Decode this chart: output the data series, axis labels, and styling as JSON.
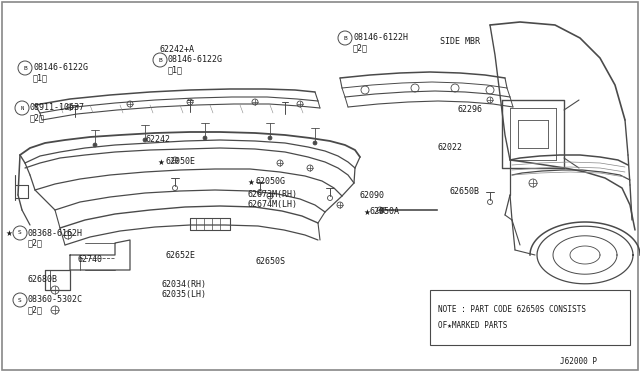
{
  "bg_color": "#ffffff",
  "line_color": "#4a4a4a",
  "text_color": "#1a1a1a",
  "fig_width": 6.4,
  "fig_height": 3.72,
  "note_line1": "NOTE : PART CODE 62650S CONSISTS",
  "note_line2": "      OF★MARKED PARTS",
  "diagram_id": "J62000 P",
  "border_color": "#aaaaaa"
}
